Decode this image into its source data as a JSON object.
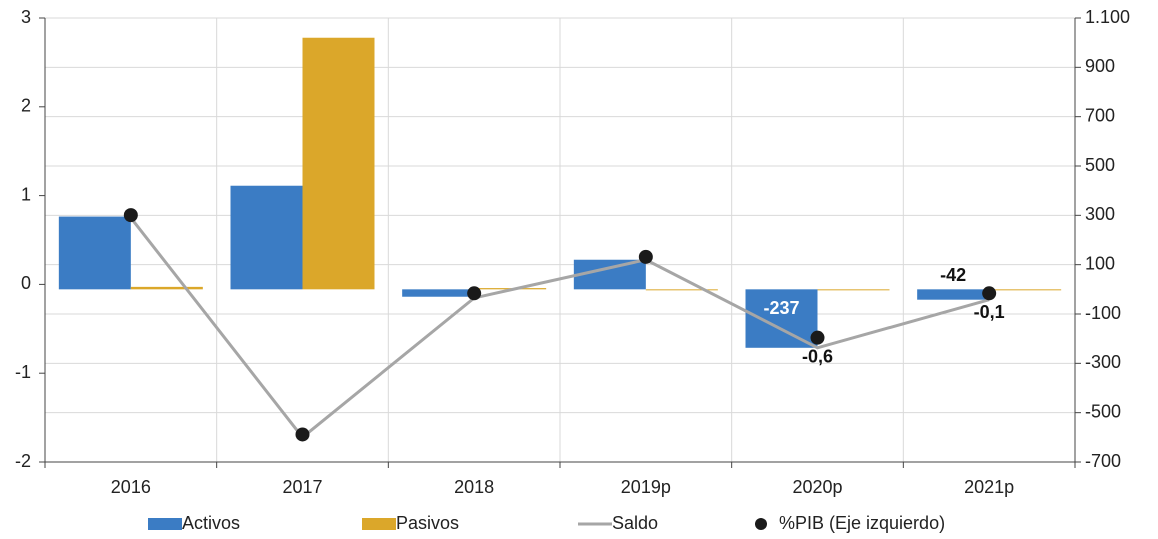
{
  "chart_data": {
    "type": "bar",
    "categories": [
      "2016",
      "2017",
      "2018",
      "2019p",
      "2020p",
      "2021p"
    ],
    "series": [
      {
        "name": "Activos",
        "type": "bar",
        "axis": "y2",
        "color": "#3b7cc4",
        "values": [
          295,
          420,
          -30,
          120,
          -237,
          -42
        ],
        "value_labels": [
          null,
          null,
          null,
          null,
          "-237",
          "-42"
        ]
      },
      {
        "name": "Pasivos",
        "type": "bar",
        "axis": "y2",
        "color": "#dba72a",
        "values": [
          10,
          1020,
          5,
          0,
          0,
          0
        ]
      },
      {
        "name": "Saldo",
        "type": "line",
        "axis": "y2",
        "color": "#a6a6a6",
        "values": [
          290,
          -600,
          -35,
          120,
          -237,
          -42
        ]
      },
      {
        "name": "%PIB (Eje izquierdo)",
        "type": "scatter",
        "axis": "y",
        "color": "#1a1a1a",
        "values": [
          0.78,
          -1.69,
          -0.1,
          0.31,
          -0.6,
          -0.1
        ],
        "value_labels": [
          null,
          null,
          null,
          null,
          "-0,6",
          "-0,1"
        ]
      }
    ],
    "ylim": [
      -2,
      3
    ],
    "yticks": [
      3,
      2,
      1,
      0,
      -1,
      -2
    ],
    "y2lim": [
      -700,
      1100
    ],
    "y2ticks": [
      {
        "value": 1100,
        "label": "1.100"
      },
      900,
      700,
      500,
      300,
      100,
      -100,
      -300,
      -500,
      -700
    ],
    "grid": true
  }
}
